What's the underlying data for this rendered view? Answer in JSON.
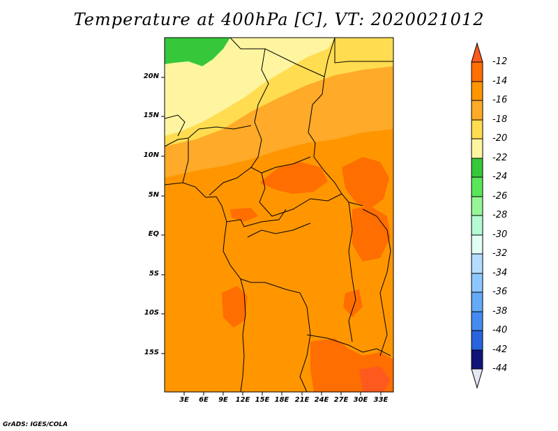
{
  "title": "Temperature at 400hPa [C], VT: 2020021012",
  "latitude_labels": [
    "20N",
    "15N",
    "10N",
    "5N",
    "EQ",
    "5S",
    "10S",
    "15S"
  ],
  "longitude_labels": [
    "3E",
    "6E",
    "9E",
    "12E",
    "15E",
    "18E",
    "21E",
    "24E",
    "27E",
    "30E",
    "33E"
  ],
  "colorbar": {
    "labels": [
      "-12",
      "-14",
      "-16",
      "-18",
      "-20",
      "-22",
      "-24",
      "-26",
      "-28",
      "-30",
      "-32",
      "-34",
      "-36",
      "-38",
      "-40",
      "-42",
      "-44"
    ],
    "colors": [
      "#ff5a1e",
      "#ff6e00",
      "#ff9600",
      "#ffaa28",
      "#ffdc50",
      "#fff5a0",
      "#36c83a",
      "#5ae65a",
      "#96f596",
      "#b4fad2",
      "#e1fff5",
      "#b4dcff",
      "#8cc8ff",
      "#64aaf5",
      "#468cf0",
      "#2864dc",
      "#1e46b4",
      "#101478",
      "#e6e6f5"
    ]
  },
  "credit": "GrADS: IGES/COLA"
}
